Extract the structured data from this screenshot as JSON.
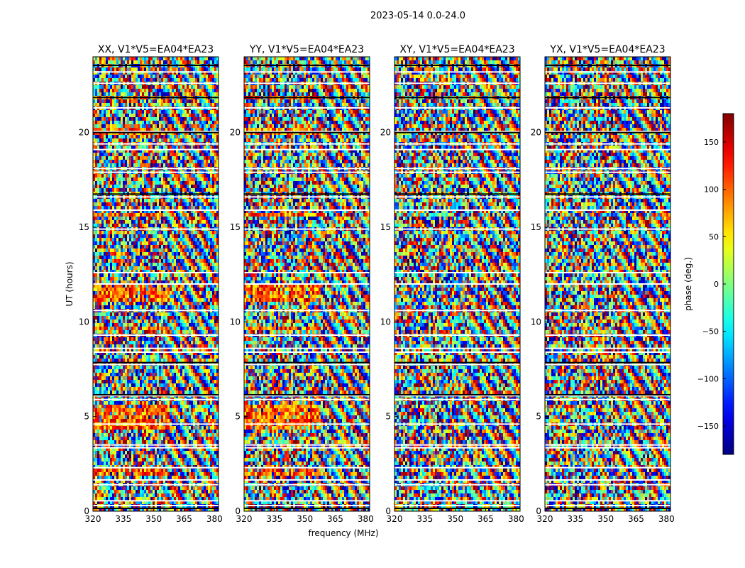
{
  "suptitle": "2023-05-14 0.0-24.0",
  "chart_data": {
    "type": "heatmap",
    "figure_title": "2023-05-14 0.0-24.0",
    "shared_ylabel": "UT (hours)",
    "shared_xlabel": "frequency (MHz)",
    "xlim": [
      320,
      382
    ],
    "ylim": [
      0,
      24
    ],
    "xticks": [
      320,
      335,
      350,
      365,
      380
    ],
    "yticks": [
      0,
      5,
      10,
      15,
      20
    ],
    "colorbar": {
      "label": "phase (deg.)",
      "range": [
        -180,
        180
      ],
      "ticks": [
        150,
        100,
        50,
        0,
        -50,
        -100,
        -150
      ],
      "tick_labels": [
        "150",
        "100",
        "50",
        "0",
        "−50",
        "−100",
        "−150"
      ],
      "colormap": "jet"
    },
    "panels": [
      {
        "title": "XX, V1*V5=EA04*EA23"
      },
      {
        "title": "YY, V1*V5=EA04*EA23"
      },
      {
        "title": "XY, V1*V5=EA04*EA23"
      },
      {
        "title": "YX, V1*V5=EA04*EA23"
      }
    ],
    "tick_labels_x": [
      "320",
      "335",
      "350",
      "365",
      "380"
    ],
    "tick_labels_y": [
      "0",
      "5",
      "10",
      "15",
      "20"
    ]
  }
}
